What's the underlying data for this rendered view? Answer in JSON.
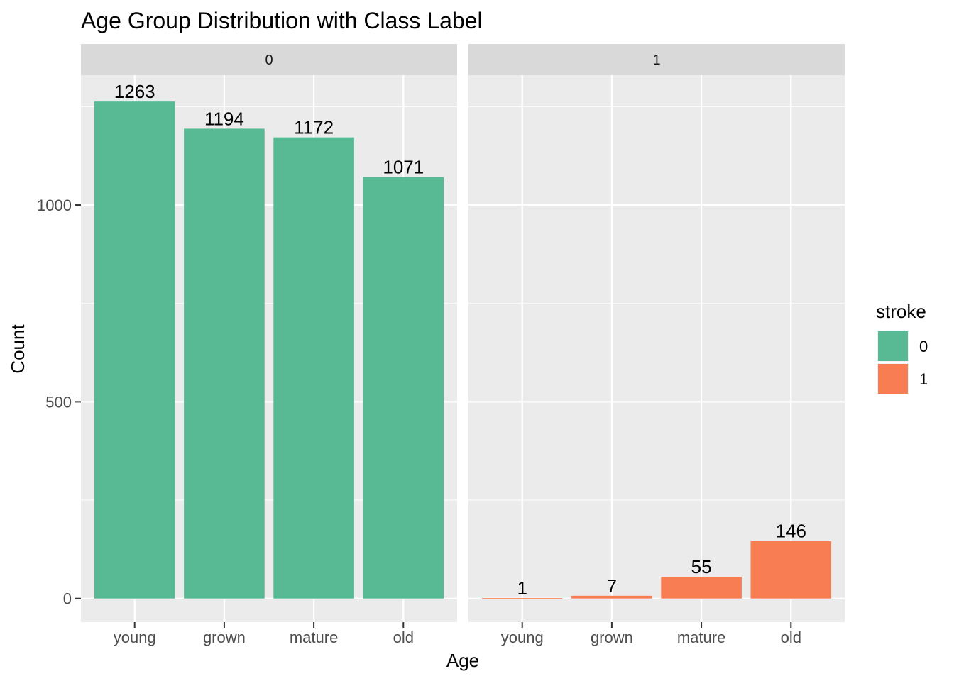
{
  "chart_data": {
    "type": "bar",
    "title": "Age Group Distribution with Class Label",
    "xlabel": "Age",
    "ylabel": "Count",
    "categories": [
      "young",
      "grown",
      "mature",
      "old"
    ],
    "ylim": [
      -60,
      1330
    ],
    "yticks": [
      0,
      500,
      1000
    ],
    "grid": true,
    "facet_variable": "stroke",
    "facets": [
      {
        "label": "0",
        "series_name": "0",
        "values": [
          1263,
          1194,
          1172,
          1071
        ],
        "color": "#57BA94"
      },
      {
        "label": "1",
        "series_name": "1",
        "values": [
          1,
          7,
          55,
          146
        ],
        "color": "#F87D53"
      }
    ],
    "legend": {
      "title": "stroke",
      "position": "right",
      "entries": [
        {
          "label": "0",
          "color": "#57BA94"
        },
        {
          "label": "1",
          "color": "#F87D53"
        }
      ]
    }
  }
}
